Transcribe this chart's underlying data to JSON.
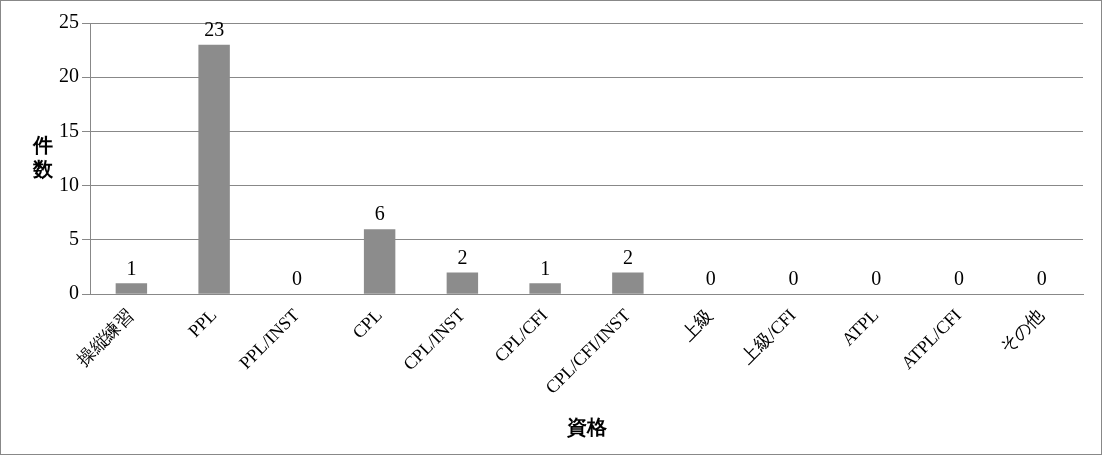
{
  "chart_data": {
    "type": "bar",
    "xlabel": "資格",
    "ylabel": "件数",
    "categories": [
      "操縦練習",
      "PPL",
      "PPL/INST",
      "CPL",
      "CPL/INST",
      "CPL/CFI",
      "CPL/CFI/INST",
      "上級",
      "上級/CFI",
      "ATPL",
      "ATPL/CFI",
      "その他"
    ],
    "values": [
      1,
      23,
      0,
      6,
      2,
      1,
      2,
      0,
      0,
      0,
      0,
      0
    ],
    "color": "#8c8c8c",
    "ylim": [
      0,
      25
    ],
    "yticks": [
      0,
      5,
      10,
      15,
      20,
      25
    ],
    "grid": "y",
    "data_labels": true,
    "legend": false
  }
}
